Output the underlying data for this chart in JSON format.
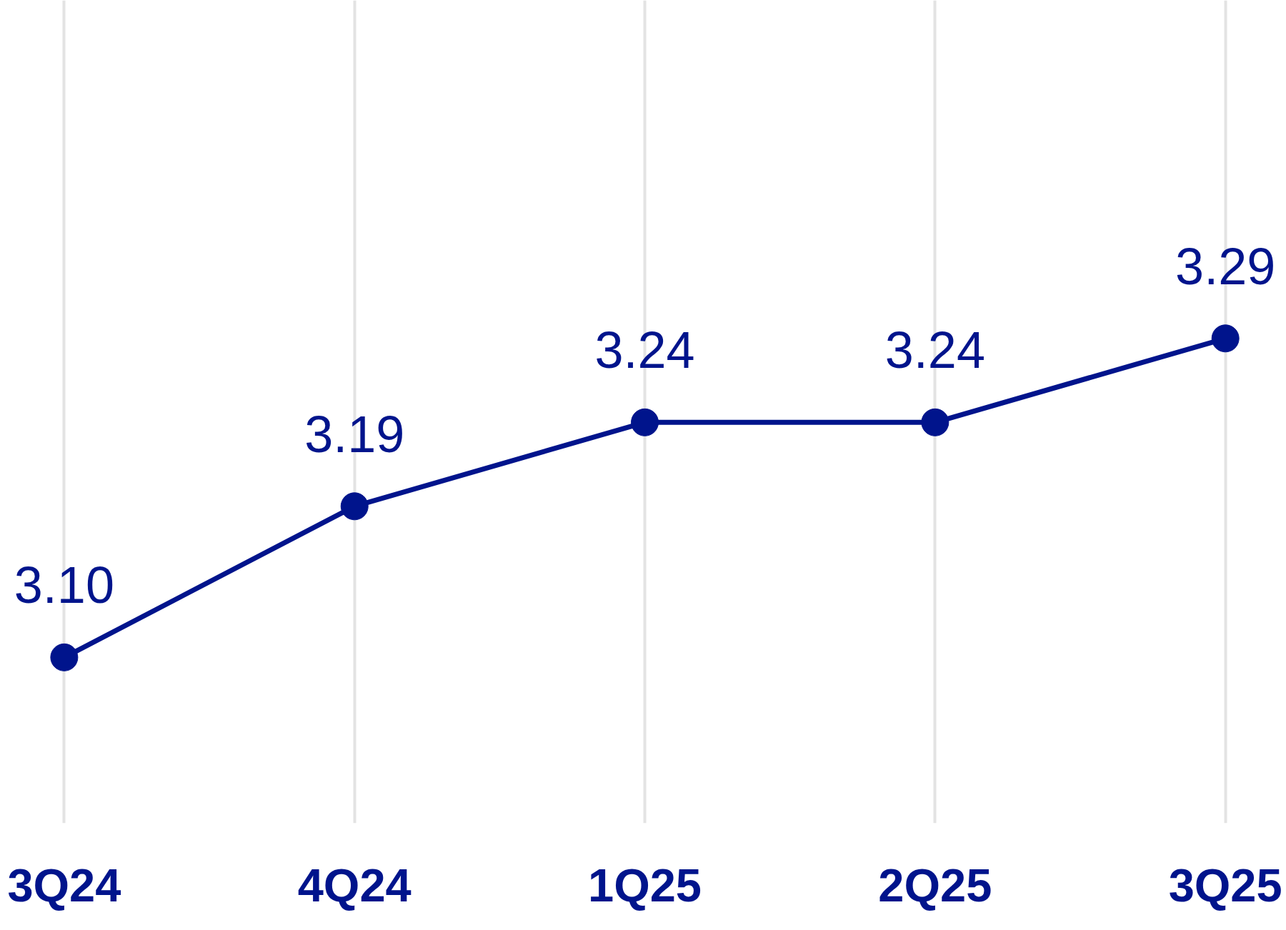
{
  "chart_data": {
    "type": "line",
    "categories": [
      "3Q24",
      "4Q24",
      "1Q25",
      "2Q25",
      "3Q25"
    ],
    "series": [
      {
        "color": "#00148c",
        "values": [
          3.1,
          3.19,
          3.24,
          3.24,
          3.29
        ],
        "value_labels": [
          "3.10",
          "3.19",
          "3.24",
          "3.24",
          "3.29"
        ]
      }
    ],
    "grid": "x",
    "marker": "circle",
    "line_style": "solid"
  }
}
